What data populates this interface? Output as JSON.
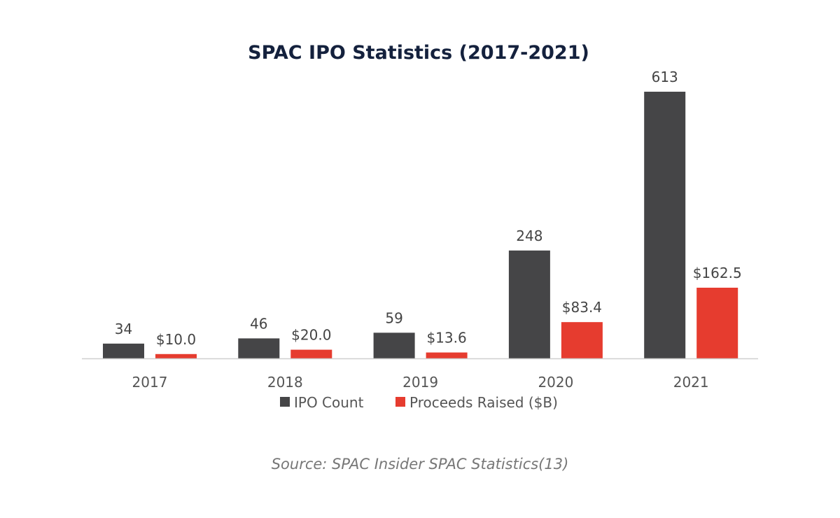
{
  "chart_data": {
    "type": "bar",
    "title": "SPAC IPO Statistics (2017-2021)",
    "categories": [
      "2017",
      "2018",
      "2019",
      "2020",
      "2021"
    ],
    "series": [
      {
        "name": "IPO Count",
        "values": [
          34,
          46,
          59,
          248,
          613
        ],
        "labels": [
          "34",
          "46",
          "59",
          "248",
          "613"
        ],
        "color": "#454547"
      },
      {
        "name": "Proceeds Raised ($B)",
        "values": [
          10.0,
          20.0,
          13.6,
          83.4,
          162.5
        ],
        "labels": [
          "$10.0",
          "$20.0",
          "$13.6",
          "$83.4",
          "$162.5"
        ],
        "color": "#e63c2f"
      }
    ],
    "legend_position": "bottom",
    "grid": false,
    "source": "Source: SPAC Insider SPAC Statistics(13)"
  }
}
